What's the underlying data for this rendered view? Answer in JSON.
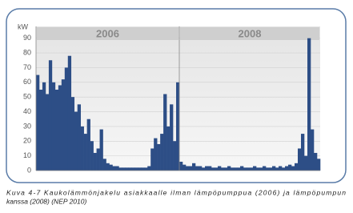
{
  "chart_data": {
    "type": "bar",
    "y_label": "kW",
    "color": "#2d4e86",
    "ylim": [
      0,
      98
    ],
    "yticks": [
      0,
      10,
      20,
      30,
      40,
      50,
      60,
      70,
      80,
      90
    ],
    "grid": true,
    "panels": [
      {
        "label": "2006",
        "values": [
          65,
          55,
          60,
          52,
          75,
          60,
          55,
          58,
          62,
          70,
          78,
          50,
          40,
          45,
          30,
          25,
          35,
          20,
          12,
          15,
          28,
          8,
          5,
          4,
          3,
          3,
          2,
          2,
          2,
          2,
          2,
          2,
          2,
          2,
          2,
          3,
          15,
          22,
          18,
          25,
          52,
          30,
          45,
          20,
          60
        ]
      },
      {
        "label": "2008",
        "values": [
          6,
          4,
          3,
          3,
          5,
          3,
          3,
          2,
          3,
          3,
          2,
          2,
          3,
          2,
          2,
          3,
          2,
          2,
          2,
          3,
          2,
          2,
          2,
          3,
          2,
          2,
          3,
          2,
          2,
          3,
          2,
          3,
          2,
          3,
          4,
          3,
          5,
          15,
          25,
          10,
          90,
          28,
          12,
          8
        ]
      }
    ]
  },
  "caption": [
    "Kuva 4-7 Kaukolämmönjakelu asiakkaalle ilman lämpöpumppua (2006) ja lämpöpumpun",
    "kanssa (2008) (NEP 2010)"
  ]
}
